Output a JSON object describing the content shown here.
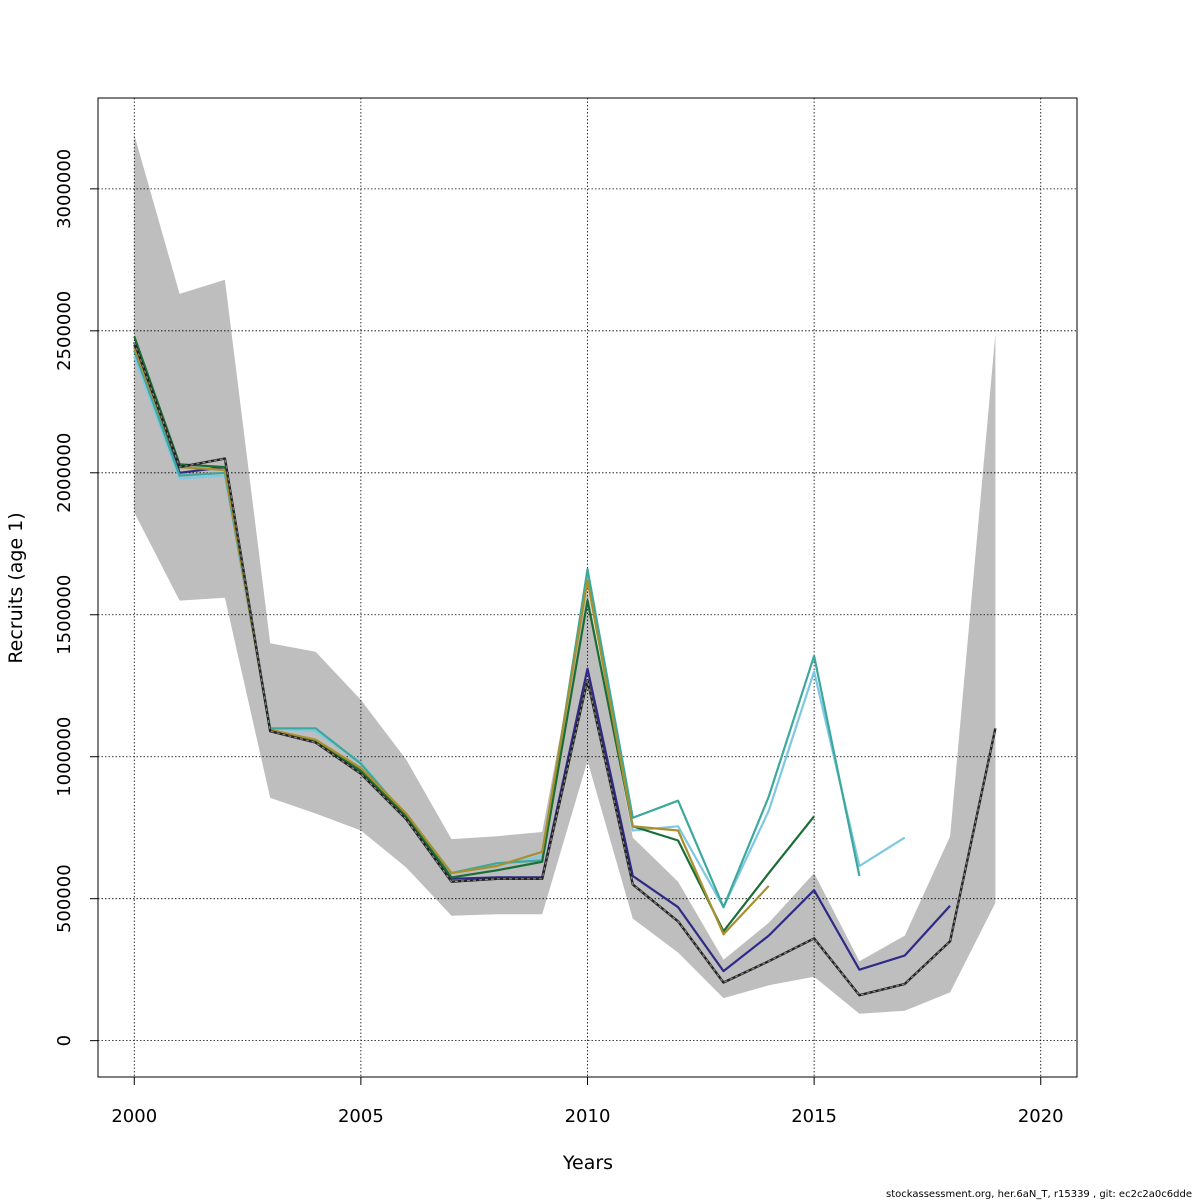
{
  "chart_data": {
    "type": "line",
    "xlabel": "Years",
    "ylabel": "Recruits (age 1)",
    "xlim": [
      1999.2,
      2020.8
    ],
    "ylim": [
      -128000,
      3320000
    ],
    "x_ticks": [
      2000,
      2005,
      2010,
      2015,
      2020
    ],
    "x_tick_labels": [
      "2000",
      "2005",
      "2010",
      "2015",
      "2020"
    ],
    "y_ticks": [
      0,
      500000,
      1000000,
      1500000,
      2000000,
      2500000,
      3000000
    ],
    "y_tick_labels": [
      "0",
      "500000",
      "1000000",
      "1500000",
      "2000000",
      "2500000",
      "3000000"
    ],
    "grid": true,
    "confidence_band": {
      "x": [
        2000,
        2001,
        2002,
        2003,
        2004,
        2005,
        2006,
        2007,
        2008,
        2009,
        2010,
        2011,
        2012,
        2013,
        2014,
        2015,
        2016,
        2017,
        2018,
        2019
      ],
      "upper": [
        3190000,
        2630000,
        2680000,
        1400000,
        1370000,
        1200000,
        990000,
        710000,
        720000,
        735000,
        1590000,
        715000,
        560000,
        285000,
        415000,
        590000,
        280000,
        370000,
        720000,
        2490000
      ],
      "lower": [
        1860000,
        1550000,
        1560000,
        855000,
        800000,
        740000,
        610000,
        440000,
        445000,
        445000,
        985000,
        430000,
        310000,
        150000,
        195000,
        225000,
        95000,
        105000,
        170000,
        485000
      ],
      "color": "#bebebe"
    },
    "series": [
      {
        "color": "#222222",
        "dashed": true,
        "x": [
          2000,
          2001,
          2002,
          2003,
          2004,
          2005,
          2006,
          2007,
          2008,
          2009,
          2010,
          2011,
          2012,
          2013,
          2014,
          2015,
          2016,
          2017,
          2018,
          2019
        ],
        "values": [
          2460000,
          2020000,
          2050000,
          1090000,
          1050000,
          940000,
          780000,
          560000,
          570000,
          570000,
          1270000,
          550000,
          420000,
          205000,
          280000,
          360000,
          160000,
          200000,
          350000,
          1100000
        ]
      },
      {
        "color": "#2e2a85",
        "x": [
          2000,
          2001,
          2002,
          2003,
          2004,
          2005,
          2006,
          2007,
          2008,
          2009,
          2010,
          2011,
          2012,
          2013,
          2014,
          2015,
          2016,
          2017,
          2018
        ],
        "values": [
          2450000,
          2000000,
          2020000,
          1090000,
          1050000,
          950000,
          780000,
          570000,
          575000,
          575000,
          1310000,
          580000,
          470000,
          245000,
          370000,
          530000,
          250000,
          300000,
          475000
        ]
      },
      {
        "color": "#7ec8e3",
        "x": [
          2000,
          2001,
          2002,
          2003,
          2004,
          2005,
          2006,
          2007,
          2008,
          2009,
          2010,
          2011,
          2012,
          2013,
          2014,
          2015,
          2016,
          2017
        ],
        "values": [
          2410000,
          1980000,
          1990000,
          1100000,
          1090000,
          980000,
          790000,
          590000,
          615000,
          650000,
          1640000,
          740000,
          755000,
          470000,
          810000,
          1300000,
          615000,
          715000
        ]
      },
      {
        "color": "#3da89c",
        "x": [
          2000,
          2001,
          2002,
          2003,
          2004,
          2005,
          2006,
          2007,
          2008,
          2009,
          2010,
          2011,
          2012,
          2013,
          2014,
          2015,
          2016
        ],
        "values": [
          2430000,
          1990000,
          2000000,
          1100000,
          1100000,
          975000,
          790000,
          590000,
          625000,
          635000,
          1660000,
          785000,
          845000,
          470000,
          860000,
          1355000,
          580000
        ]
      },
      {
        "color": "#1a6e35",
        "x": [
          2000,
          2001,
          2002,
          2003,
          2004,
          2005,
          2006,
          2007,
          2008,
          2009,
          2010,
          2011,
          2012,
          2013,
          2014,
          2015
        ],
        "values": [
          2480000,
          2030000,
          2020000,
          1095000,
          1055000,
          950000,
          790000,
          575000,
          600000,
          630000,
          1550000,
          755000,
          705000,
          385000,
          590000,
          790000
        ]
      },
      {
        "color": "#a89030",
        "x": [
          2000,
          2001,
          2002,
          2003,
          2004,
          2005,
          2006,
          2007,
          2008,
          2009,
          2010,
          2011,
          2012,
          2013,
          2014
        ],
        "values": [
          2440000,
          2020000,
          2010000,
          1095000,
          1060000,
          960000,
          800000,
          590000,
          615000,
          665000,
          1620000,
          755000,
          740000,
          375000,
          545000
        ]
      }
    ]
  },
  "footer_text": "stockassessment.org, her.6aN_T, r15339 , git: ec2c2a0c6dde"
}
